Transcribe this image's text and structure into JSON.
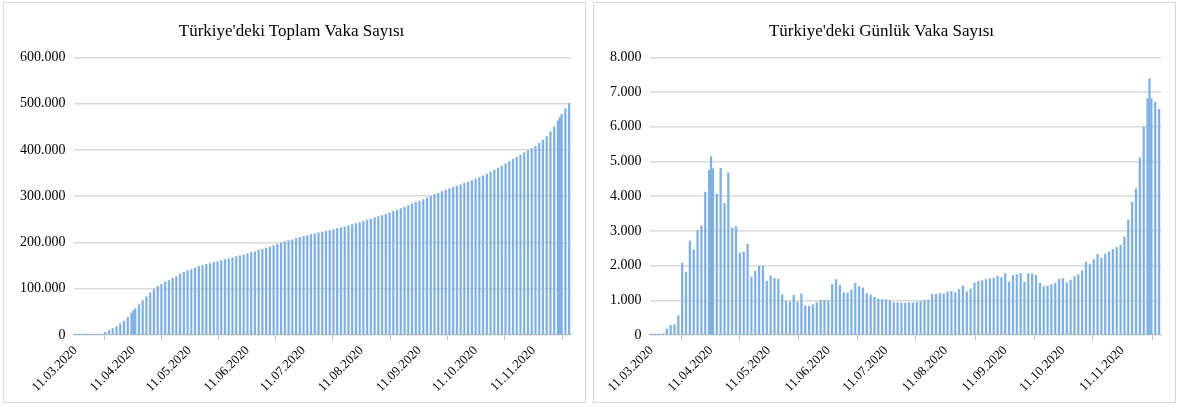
{
  "chart_data": [
    {
      "type": "bar",
      "title": "Türkiye'deki Toplam Vaka Sayısı",
      "color": "#7fb0e2",
      "x": [
        "2020-03-11",
        "2020-03-13",
        "2020-03-15",
        "2020-03-17",
        "2020-03-19",
        "2020-03-21",
        "2020-03-23",
        "2020-03-25",
        "2020-03-27",
        "2020-03-29",
        "2020-03-31",
        "2020-04-02",
        "2020-04-04",
        "2020-04-06",
        "2020-04-08",
        "2020-04-10",
        "2020-04-11",
        "2020-04-12",
        "2020-04-14",
        "2020-04-16",
        "2020-04-18",
        "2020-04-20",
        "2020-04-22",
        "2020-04-24",
        "2020-04-26",
        "2020-04-28",
        "2020-04-30",
        "2020-05-02",
        "2020-05-04",
        "2020-05-06",
        "2020-05-08",
        "2020-05-10",
        "2020-05-12",
        "2020-05-14",
        "2020-05-16",
        "2020-05-18",
        "2020-05-20",
        "2020-05-22",
        "2020-05-24",
        "2020-05-26",
        "2020-05-28",
        "2020-05-30",
        "2020-06-01",
        "2020-06-03",
        "2020-06-05",
        "2020-06-07",
        "2020-06-09",
        "2020-06-11",
        "2020-06-13",
        "2020-06-15",
        "2020-06-17",
        "2020-06-19",
        "2020-06-21",
        "2020-06-23",
        "2020-06-25",
        "2020-06-27",
        "2020-06-29",
        "2020-07-01",
        "2020-07-03",
        "2020-07-05",
        "2020-07-07",
        "2020-07-09",
        "2020-07-11",
        "2020-07-13",
        "2020-07-15",
        "2020-07-17",
        "2020-07-19",
        "2020-07-21",
        "2020-07-23",
        "2020-07-25",
        "2020-07-27",
        "2020-07-29",
        "2020-07-31",
        "2020-08-02",
        "2020-08-04",
        "2020-08-06",
        "2020-08-08",
        "2020-08-10",
        "2020-08-12",
        "2020-08-14",
        "2020-08-16",
        "2020-08-18",
        "2020-08-20",
        "2020-08-22",
        "2020-08-24",
        "2020-08-26",
        "2020-08-28",
        "2020-08-30",
        "2020-09-01",
        "2020-09-03",
        "2020-09-05",
        "2020-09-07",
        "2020-09-09",
        "2020-09-11",
        "2020-09-13",
        "2020-09-15",
        "2020-09-17",
        "2020-09-19",
        "2020-09-21",
        "2020-09-23",
        "2020-09-25",
        "2020-09-27",
        "2020-09-29",
        "2020-10-01",
        "2020-10-03",
        "2020-10-05",
        "2020-10-07",
        "2020-10-09",
        "2020-10-11",
        "2020-10-13",
        "2020-10-15",
        "2020-10-17",
        "2020-10-19",
        "2020-10-21",
        "2020-10-23",
        "2020-10-25",
        "2020-10-27",
        "2020-10-29",
        "2020-10-31",
        "2020-11-02",
        "2020-11-04",
        "2020-11-06",
        "2020-11-08",
        "2020-11-10",
        "2020-11-12",
        "2020-11-14",
        "2020-11-16",
        "2020-11-18",
        "2020-11-20",
        "2020-11-22",
        "2020-11-24",
        "2020-11-25",
        "2020-11-26",
        "2020-11-28",
        "2020-11-30"
      ],
      "values": [
        1,
        5,
        18,
        47,
        191,
        947,
        1529,
        2433,
        5698,
        9217,
        13531,
        18135,
        23934,
        30217,
        38226,
        47029,
        52167,
        56956,
        65111,
        74193,
        82329,
        90980,
        98674,
        104912,
        110130,
        114653,
        117589,
        122392,
        126045,
        131744,
        135569,
        138657,
        141475,
        144749,
        148067,
        150593,
        152587,
        154500,
        156827,
        158762,
        160979,
        163103,
        164769,
        167410,
        169218,
        171121,
        173036,
        175218,
        178239,
        179831,
        182727,
        185245,
        187685,
        190165,
        193115,
        195883,
        198613,
        201098,
        203456,
        205758,
        208938,
        210965,
        212993,
        214993,
        216873,
        218717,
        220572,
        222402,
        224252,
        226100,
        227982,
        229891,
        231869,
        233851,
        236112,
        238450,
        240804,
        243180,
        245635,
        248117,
        250542,
        253108,
        255723,
        258249,
        260809,
        263998,
        267064,
        270133,
        273301,
        276555,
        279806,
        283270,
        286455,
        289635,
        292878,
        296391,
        299810,
        303290,
        306302,
        309790,
        313316,
        316181,
        319049,
        321819,
        324443,
        327557,
        330558,
        333814,
        337061,
        340395,
        344042,
        347796,
        352063,
        356176,
        360547,
        365055,
        369813,
        374520,
        379585,
        384000,
        389000,
        393500,
        398000,
        403000,
        408000,
        414000,
        421000,
        429000,
        439000,
        450000,
        463000,
        470000,
        477000,
        489000,
        500000
      ],
      "xlim": [
        "2020-03-10",
        "2020-12-01"
      ],
      "xticks": [
        {
          "value": "2020-03-11",
          "label": "11.03.2020"
        },
        {
          "value": "2020-04-11",
          "label": "11.04.2020"
        },
        {
          "value": "2020-05-11",
          "label": "11.05.2020"
        },
        {
          "value": "2020-06-11",
          "label": "11.06.2020"
        },
        {
          "value": "2020-07-11",
          "label": "11.07.2020"
        },
        {
          "value": "2020-08-11",
          "label": "11.08.2020"
        },
        {
          "value": "2020-09-11",
          "label": "11.09.2020"
        },
        {
          "value": "2020-10-11",
          "label": "11.10.2020"
        },
        {
          "value": "2020-11-11",
          "label": "11.11.2020"
        }
      ],
      "ylim": [
        0,
        600000
      ],
      "yticks": [
        0,
        {
          "value": 100000,
          "label": "100.000"
        },
        {
          "value": 200000,
          "label": "200.000"
        },
        {
          "value": 300000,
          "label": "300.000"
        },
        {
          "value": 400000,
          "label": "400.000"
        },
        {
          "value": 500000,
          "label": "500.000"
        },
        {
          "value": 600000,
          "label": "600.000"
        }
      ],
      "grid": "y"
    },
    {
      "type": "bar",
      "title": "Türkiye'deki Günlük Vaka Sayısı",
      "color": "#7fb0e2",
      "x": [
        "2020-03-11",
        "2020-03-13",
        "2020-03-15",
        "2020-03-17",
        "2020-03-19",
        "2020-03-21",
        "2020-03-23",
        "2020-03-25",
        "2020-03-27",
        "2020-03-29",
        "2020-03-31",
        "2020-04-02",
        "2020-04-04",
        "2020-04-06",
        "2020-04-08",
        "2020-04-10",
        "2020-04-11",
        "2020-04-12",
        "2020-04-14",
        "2020-04-16",
        "2020-04-18",
        "2020-04-20",
        "2020-04-22",
        "2020-04-24",
        "2020-04-26",
        "2020-04-28",
        "2020-04-30",
        "2020-05-02",
        "2020-05-04",
        "2020-05-06",
        "2020-05-08",
        "2020-05-10",
        "2020-05-12",
        "2020-05-14",
        "2020-05-16",
        "2020-05-18",
        "2020-05-20",
        "2020-05-22",
        "2020-05-24",
        "2020-05-26",
        "2020-05-28",
        "2020-05-30",
        "2020-06-01",
        "2020-06-03",
        "2020-06-05",
        "2020-06-07",
        "2020-06-09",
        "2020-06-11",
        "2020-06-13",
        "2020-06-15",
        "2020-06-17",
        "2020-06-19",
        "2020-06-21",
        "2020-06-23",
        "2020-06-25",
        "2020-06-27",
        "2020-06-29",
        "2020-07-01",
        "2020-07-03",
        "2020-07-05",
        "2020-07-07",
        "2020-07-09",
        "2020-07-11",
        "2020-07-13",
        "2020-07-15",
        "2020-07-17",
        "2020-07-19",
        "2020-07-21",
        "2020-07-23",
        "2020-07-25",
        "2020-07-27",
        "2020-07-29",
        "2020-07-31",
        "2020-08-02",
        "2020-08-04",
        "2020-08-06",
        "2020-08-08",
        "2020-08-10",
        "2020-08-12",
        "2020-08-14",
        "2020-08-16",
        "2020-08-18",
        "2020-08-20",
        "2020-08-22",
        "2020-08-24",
        "2020-08-26",
        "2020-08-28",
        "2020-08-30",
        "2020-09-01",
        "2020-09-03",
        "2020-09-05",
        "2020-09-07",
        "2020-09-09",
        "2020-09-11",
        "2020-09-13",
        "2020-09-15",
        "2020-09-17",
        "2020-09-19",
        "2020-09-21",
        "2020-09-23",
        "2020-09-25",
        "2020-09-27",
        "2020-09-29",
        "2020-10-01",
        "2020-10-03",
        "2020-10-05",
        "2020-10-07",
        "2020-10-09",
        "2020-10-11",
        "2020-10-13",
        "2020-10-15",
        "2020-10-17",
        "2020-10-19",
        "2020-10-21",
        "2020-10-23",
        "2020-10-25",
        "2020-10-27",
        "2020-10-29",
        "2020-10-31",
        "2020-11-02",
        "2020-11-04",
        "2020-11-06",
        "2020-11-08",
        "2020-11-10",
        "2020-11-12",
        "2020-11-14",
        "2020-11-16",
        "2020-11-18",
        "2020-11-20",
        "2020-11-22",
        "2020-11-24",
        "2020-11-25",
        "2020-11-26",
        "2020-11-28",
        "2020-11-30"
      ],
      "values": [
        1,
        4,
        12,
        29,
        168,
        277,
        293,
        561,
        2069,
        1815,
        2704,
        2456,
        3013,
        3148,
        4117,
        4747,
        5138,
        4789,
        4062,
        4801,
        3783,
        4674,
        3083,
        3122,
        2357,
        2392,
        2615,
        1670,
        1832,
        1983,
        1977,
        1542,
        1704,
        1635,
        1610,
        1158,
        972,
        952,
        1141,
        948,
        1182,
        839,
        827,
        867,
        930,
        989,
        993,
        987,
        1459,
        1592,
        1429,
        1214,
        1212,
        1293,
        1492,
        1396,
        1356,
        1192,
        1148,
        1086,
        1041,
        1024,
        1016,
        992,
        933,
        926,
        918,
        915,
        926,
        924,
        945,
        963,
        997,
        1008,
        1172,
        1178,
        1195,
        1183,
        1243,
        1256,
        1220,
        1309,
        1412,
        1243,
        1327,
        1502,
        1549,
        1563,
        1596,
        1623,
        1637,
        1695,
        1651,
        1767,
        1527,
        1716,
        1742,
        1775,
        1525,
        1767,
        1762,
        1715,
        1494,
        1391,
        1410,
        1448,
        1487,
        1604,
        1627,
        1502,
        1582,
        1683,
        1732,
        1850,
        2102,
        2025,
        2174,
        2321,
        2213,
        2331,
        2394,
        2466,
        2517,
        2584,
        2820,
        3316,
        3819,
        4215,
        5103,
        5996,
        6814,
        7381,
        6814,
        6713,
        6503
      ],
      "xlim": [
        "2020-03-10",
        "2020-12-01"
      ],
      "xticks": [
        {
          "value": "2020-03-11",
          "label": "11.03.2020"
        },
        {
          "value": "2020-04-11",
          "label": "11.04.2020"
        },
        {
          "value": "2020-05-11",
          "label": "11.05.2020"
        },
        {
          "value": "2020-06-11",
          "label": "11.06.2020"
        },
        {
          "value": "2020-07-11",
          "label": "11.07.2020"
        },
        {
          "value": "2020-08-11",
          "label": "11.08.2020"
        },
        {
          "value": "2020-09-11",
          "label": "11.09.2020"
        },
        {
          "value": "2020-10-11",
          "label": "11.10.2020"
        },
        {
          "value": "2020-11-11",
          "label": "11.11.2020"
        }
      ],
      "ylim": [
        0,
        8000
      ],
      "yticks": [
        0,
        {
          "value": 1000,
          "label": "1.000"
        },
        {
          "value": 2000,
          "label": "2.000"
        },
        {
          "value": 3000,
          "label": "3.000"
        },
        {
          "value": 4000,
          "label": "4.000"
        },
        {
          "value": 5000,
          "label": "5.000"
        },
        {
          "value": 6000,
          "label": "6.000"
        },
        {
          "value": 7000,
          "label": "7.000"
        },
        {
          "value": 8000,
          "label": "8.000"
        }
      ],
      "grid": "y"
    }
  ]
}
